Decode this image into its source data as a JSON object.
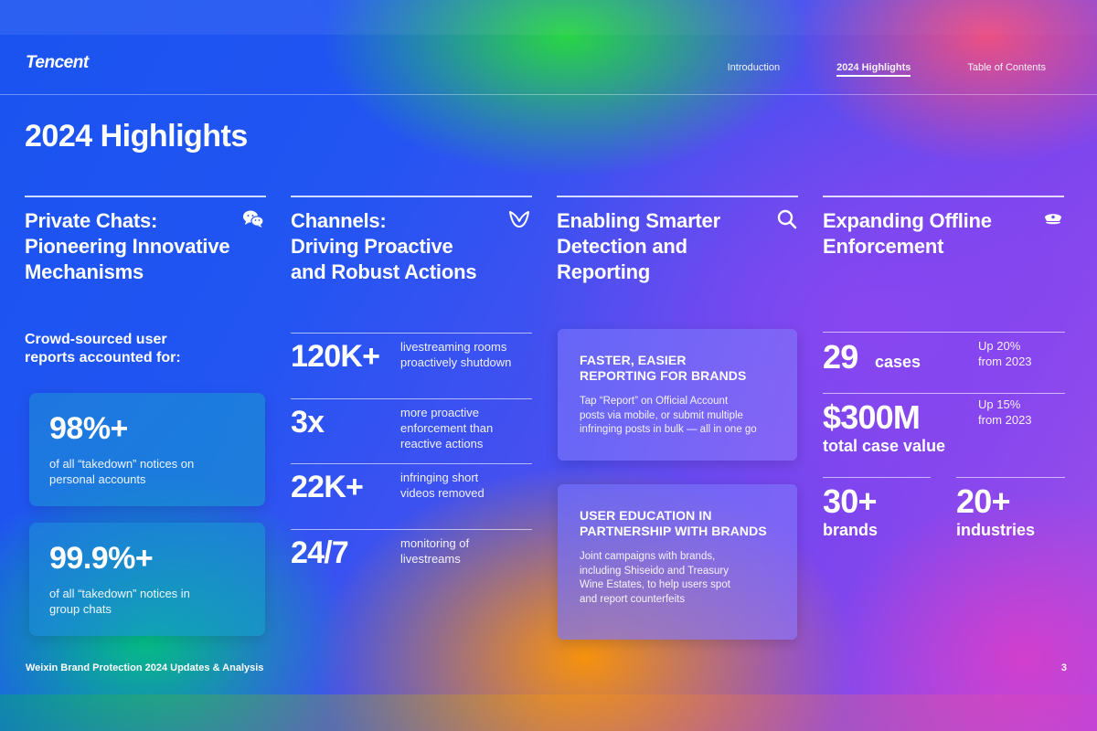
{
  "header": {
    "logo": "Tencent",
    "nav": [
      {
        "label": "Introduction",
        "active": false
      },
      {
        "label": "2024 Highlights",
        "active": true
      },
      {
        "label": "Table of Contents",
        "active": false
      }
    ]
  },
  "page_title": "2024 Highlights",
  "columns": [
    {
      "title_lines": [
        "Private Chats:",
        "Pioneering Innovative",
        "Mechanisms"
      ],
      "icon": "chat-bubbles-icon"
    },
    {
      "title_lines": [
        "Channels:",
        "Driving Proactive",
        "and Robust Actions"
      ],
      "icon": "channels-butterfly-icon"
    },
    {
      "title_lines": [
        "Enabling Smarter",
        "Detection and",
        "Reporting"
      ],
      "icon": "search-icon"
    },
    {
      "title_lines": [
        "Expanding Offline",
        "Enforcement"
      ],
      "icon": "police-cap-icon"
    }
  ],
  "private_chats": {
    "label_lines": [
      "Crowd-sourced user",
      "reports accounted for:"
    ],
    "stats": [
      {
        "value": "98%+",
        "desc_lines": [
          "of all “takedown” notices on",
          "personal accounts"
        ]
      },
      {
        "value": "99.9%+",
        "desc_lines": [
          "of all “takedown” notices in",
          "group chats"
        ]
      }
    ]
  },
  "channels": {
    "metrics": [
      {
        "value": "120K+",
        "desc_lines": [
          "livestreaming rooms",
          "proactively shutdown"
        ]
      },
      {
        "value": "3x",
        "desc_lines": [
          "more proactive",
          "enforcement than",
          "reactive actions"
        ]
      },
      {
        "value": "22K+",
        "desc_lines": [
          "infringing short",
          "videos removed"
        ]
      },
      {
        "value": "24/7",
        "desc_lines": [
          "monitoring of",
          "livestreams"
        ]
      }
    ]
  },
  "detection": {
    "cards": [
      {
        "head_lines": [
          "FASTER, EASIER",
          "REPORTING FOR BRANDS"
        ],
        "body_lines": [
          "Tap “Report” on Official Account",
          "posts via mobile, or submit multiple",
          "infringing posts in bulk — all in one go"
        ]
      },
      {
        "head_lines": [
          "USER EDUCATION IN",
          "PARTNERSHIP WITH BRANDS"
        ],
        "body_lines": [
          "Joint campaigns with brands,",
          "including Shiseido and Treasury",
          "Wine Estates, to help users spot",
          "and report counterfeits"
        ]
      }
    ]
  },
  "offline": {
    "cases_value": "29",
    "cases_unit": "cases",
    "cases_change": [
      "Up 20%",
      "from 2023"
    ],
    "total_value": "$300M",
    "total_label": "total case value",
    "total_change": [
      "Up 15%",
      "from 2023"
    ],
    "brands_value": "30+",
    "brands_label": "brands",
    "industries_value": "20+",
    "industries_label": "industries"
  },
  "footer": {
    "doc_title": "Weixin Brand Protection 2024 Updates & Analysis",
    "page_number": "3"
  }
}
